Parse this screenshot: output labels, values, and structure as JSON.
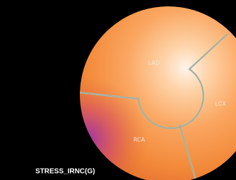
{
  "labels": {
    "lad": "LAD",
    "lcx": "LCX",
    "rca": "RCA"
  },
  "caption": "STRESS_IRNC(G)"
}
